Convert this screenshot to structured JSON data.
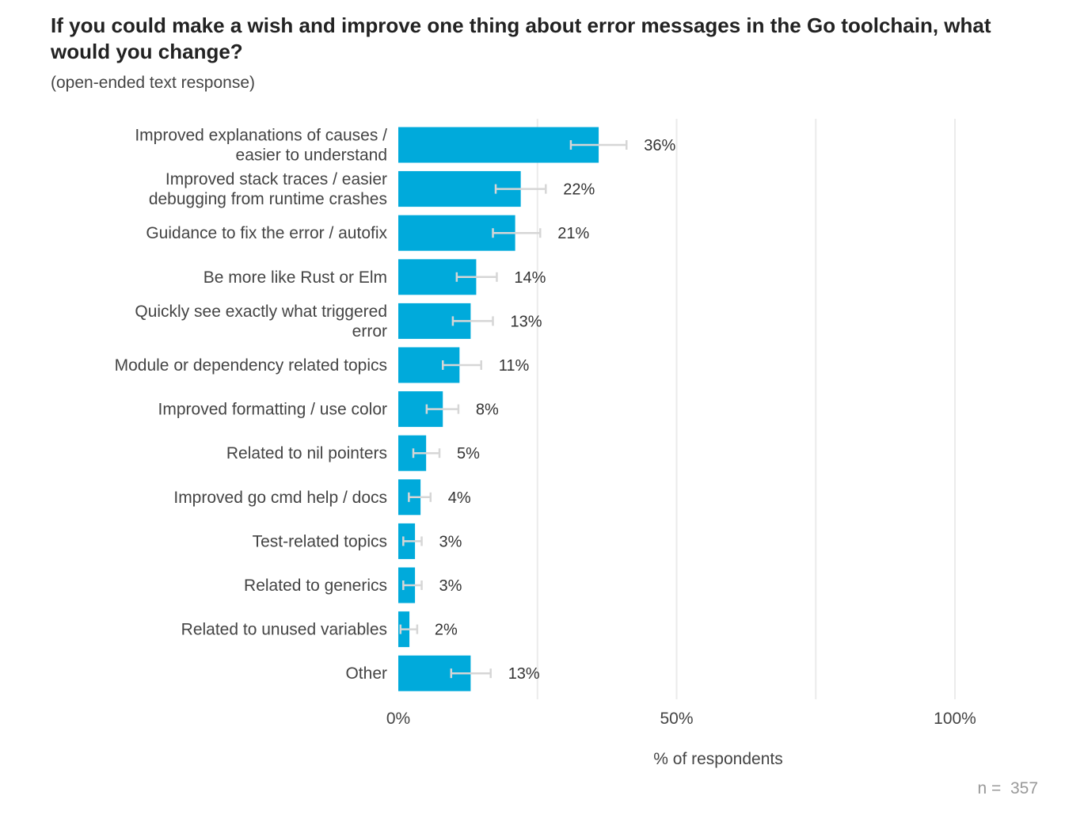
{
  "chart_data": {
    "type": "bar",
    "orientation": "horizontal",
    "title": "If you could make a wish and improve one thing about error messages in the Go toolchain, what would you change?",
    "subtitle": "(open-ended text response)",
    "xlabel": "% of respondents",
    "ylabel": "",
    "xlim": [
      0,
      100
    ],
    "x_ticks": [
      0,
      50,
      100
    ],
    "x_tick_labels": [
      "0%",
      "50%",
      "100%"
    ],
    "grid": true,
    "bar_color": "#00AADB",
    "error_bar_color": "#D6D6D6",
    "gridline_color": "#EBEBEB",
    "categories": [
      [
        "Improved explanations of causes /",
        "easier to understand"
      ],
      [
        "Improved stack traces / easier",
        "debugging from runtime crashes"
      ],
      [
        "Guidance to fix the error / autofix"
      ],
      [
        "Be more like Rust or Elm"
      ],
      [
        "Quickly see exactly what triggered",
        "error"
      ],
      [
        "Module or dependency related topics"
      ],
      [
        "Improved formatting / use color"
      ],
      [
        "Related to nil pointers"
      ],
      [
        "Improved go cmd help / docs"
      ],
      [
        "Test-related topics"
      ],
      [
        "Related to generics"
      ],
      [
        "Related to unused variables"
      ],
      [
        "Other"
      ]
    ],
    "values": [
      36,
      22,
      21,
      14,
      13,
      11,
      8,
      5,
      4,
      3,
      3,
      2,
      13
    ],
    "value_labels": [
      "36%",
      "22%",
      "21%",
      "14%",
      "13%",
      "11%",
      "8%",
      "5%",
      "4%",
      "3%",
      "3%",
      "2%",
      "13%"
    ],
    "error_low": [
      31,
      17.5,
      17,
      10.5,
      9.8,
      8,
      5.1,
      2.7,
      1.9,
      0.9,
      0.9,
      0.4,
      9.5
    ],
    "error_high": [
      41,
      26.5,
      25.5,
      17.7,
      17,
      14.9,
      10.8,
      7.4,
      5.8,
      4.2,
      4.2,
      3.4,
      16.6
    ],
    "n_label": "n =  357"
  }
}
